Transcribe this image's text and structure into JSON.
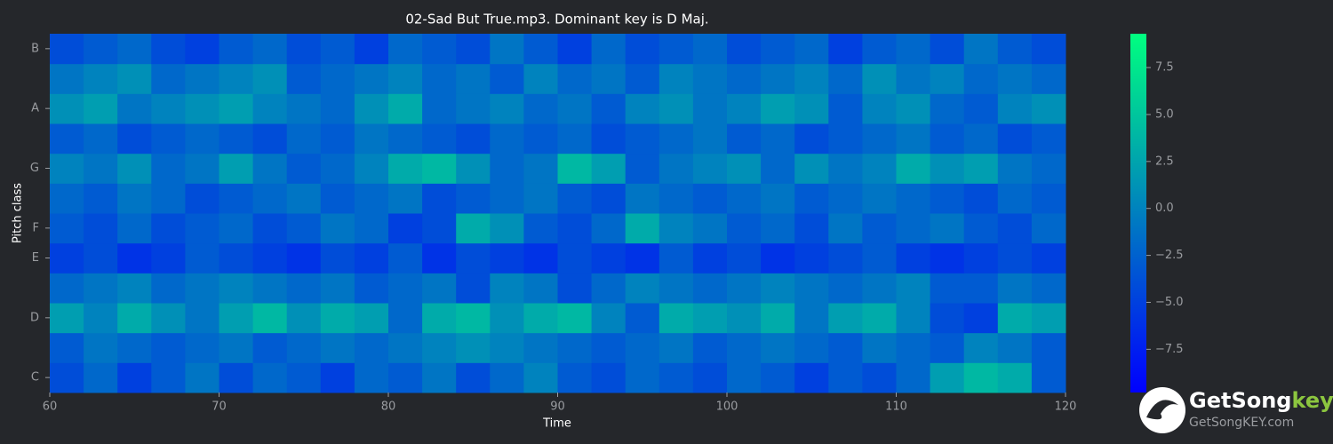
{
  "chart_data": {
    "type": "heatmap",
    "title": "02-Sad But True.mp3. Dominant key is D Maj.",
    "x_label": "Time",
    "y_label": "Pitch class",
    "xlim": [
      60,
      120
    ],
    "xticks": [
      60,
      70,
      80,
      90,
      100,
      110,
      120
    ],
    "ylim": [
      -0.5,
      11.5
    ],
    "yticks": [
      {
        "value": 0,
        "label": "C"
      },
      {
        "value": 2,
        "label": "D"
      },
      {
        "value": 4,
        "label": "E"
      },
      {
        "value": 5,
        "label": "F"
      },
      {
        "value": 7,
        "label": "G"
      },
      {
        "value": 9,
        "label": "A"
      },
      {
        "value": 11,
        "label": "B"
      }
    ],
    "colormap": "winter",
    "clim": [
      -9.8,
      9.3
    ],
    "colorbar_ticks": [
      {
        "value": -7.5,
        "label": "−7.5"
      },
      {
        "value": -5,
        "label": "−5.0"
      },
      {
        "value": -2.5,
        "label": "−2.5"
      },
      {
        "value": 0,
        "label": "0.0"
      },
      2.5,
      {
        "value": 5,
        "label": "5.0"
      },
      7.5
    ],
    "z": [
      [
        -4,
        -2,
        -5,
        -3,
        -1,
        -4,
        -2,
        -3,
        -5,
        -2,
        -3,
        -1,
        -4,
        -2,
        0,
        -3,
        -4,
        -2,
        -3,
        -4,
        -2,
        -3,
        -5,
        -3,
        -4,
        -2,
        2,
        4,
        3,
        -3
      ],
      [
        -3,
        -1,
        -2,
        -3,
        -2,
        -1,
        -3,
        -2,
        -1,
        -2,
        -1,
        0,
        1,
        0,
        -1,
        -2,
        -3,
        -2,
        -1,
        -3,
        -2,
        -1,
        -2,
        -3,
        -1,
        -2,
        -3,
        0,
        -1,
        -3
      ],
      [
        2,
        0,
        3,
        1,
        -1,
        2,
        4,
        1,
        3,
        2,
        -2,
        3,
        4,
        1,
        3,
        4,
        0,
        -3,
        3,
        2,
        1,
        3,
        -1,
        2,
        3,
        0,
        -4,
        -5,
        3,
        2
      ],
      [
        -2,
        -1,
        0,
        -2,
        -1,
        0,
        -1,
        -2,
        -1,
        -3,
        -2,
        -1,
        -4,
        0,
        -1,
        -4,
        -2,
        0,
        -1,
        -2,
        -1,
        0,
        -1,
        -2,
        -1,
        0,
        -3,
        -3,
        -1,
        -2
      ],
      [
        -5,
        -4,
        -6,
        -5,
        -3,
        -4,
        -5,
        -6,
        -4,
        -5,
        -3,
        -6,
        -4,
        -5,
        -6,
        -4,
        -5,
        -6,
        -3,
        -5,
        -4,
        -6,
        -5,
        -4,
        -3,
        -5,
        -6,
        -5,
        -4,
        -5
      ],
      [
        -3,
        -4,
        -2,
        -4,
        -3,
        -2,
        -4,
        -3,
        -1,
        -2,
        -5,
        -4,
        3,
        1,
        -3,
        -4,
        -2,
        3,
        0,
        -1,
        -3,
        -2,
        -4,
        -1,
        -3,
        -2,
        -1,
        -3,
        -4,
        -2
      ],
      [
        -2,
        -3,
        -1,
        -2,
        -4,
        -3,
        -2,
        -1,
        -3,
        -2,
        -1,
        -4,
        -3,
        -2,
        -1,
        -3,
        -4,
        -1,
        -2,
        -3,
        -2,
        -1,
        -3,
        -2,
        -1,
        -2,
        -3,
        -4,
        -2,
        -3
      ],
      [
        0,
        -1,
        1,
        -2,
        -1,
        2,
        -1,
        -3,
        -2,
        0,
        3,
        4,
        1,
        -2,
        -1,
        4,
        2,
        -3,
        -1,
        0,
        1,
        -2,
        1,
        -1,
        0,
        3,
        1,
        2,
        -1,
        -2
      ],
      [
        -3,
        -2,
        -4,
        -3,
        -2,
        -3,
        -4,
        -2,
        -3,
        -1,
        -2,
        -3,
        -4,
        -2,
        -3,
        -2,
        -4,
        -3,
        -2,
        -1,
        -3,
        -2,
        -4,
        -3,
        -2,
        -1,
        -3,
        -2,
        -4,
        -3
      ],
      [
        1,
        2,
        -1,
        0,
        1,
        2,
        0,
        -1,
        -2,
        1,
        3,
        -2,
        -1,
        0,
        -2,
        -1,
        -3,
        0,
        1,
        -1,
        0,
        2,
        1,
        -3,
        0,
        1,
        -2,
        -3,
        0,
        1
      ],
      [
        -1,
        0,
        1,
        -2,
        -1,
        0,
        1,
        -3,
        -2,
        -1,
        0,
        -2,
        -1,
        -3,
        0,
        -2,
        -1,
        -3,
        0,
        -1,
        -2,
        -1,
        0,
        -2,
        1,
        -1,
        0,
        -2,
        -1,
        -2
      ],
      [
        -4,
        -3,
        -2,
        -4,
        -5,
        -3,
        -2,
        -4,
        -3,
        -5,
        -2,
        -3,
        -4,
        -1,
        -3,
        -5,
        -2,
        -4,
        -3,
        -2,
        -4,
        -3,
        -2,
        -5,
        -3,
        -2,
        -4,
        -1,
        -3,
        -4
      ]
    ]
  },
  "logo": {
    "name": "GetSong",
    "accent": "key",
    "url": "GetSongKEY.com"
  }
}
